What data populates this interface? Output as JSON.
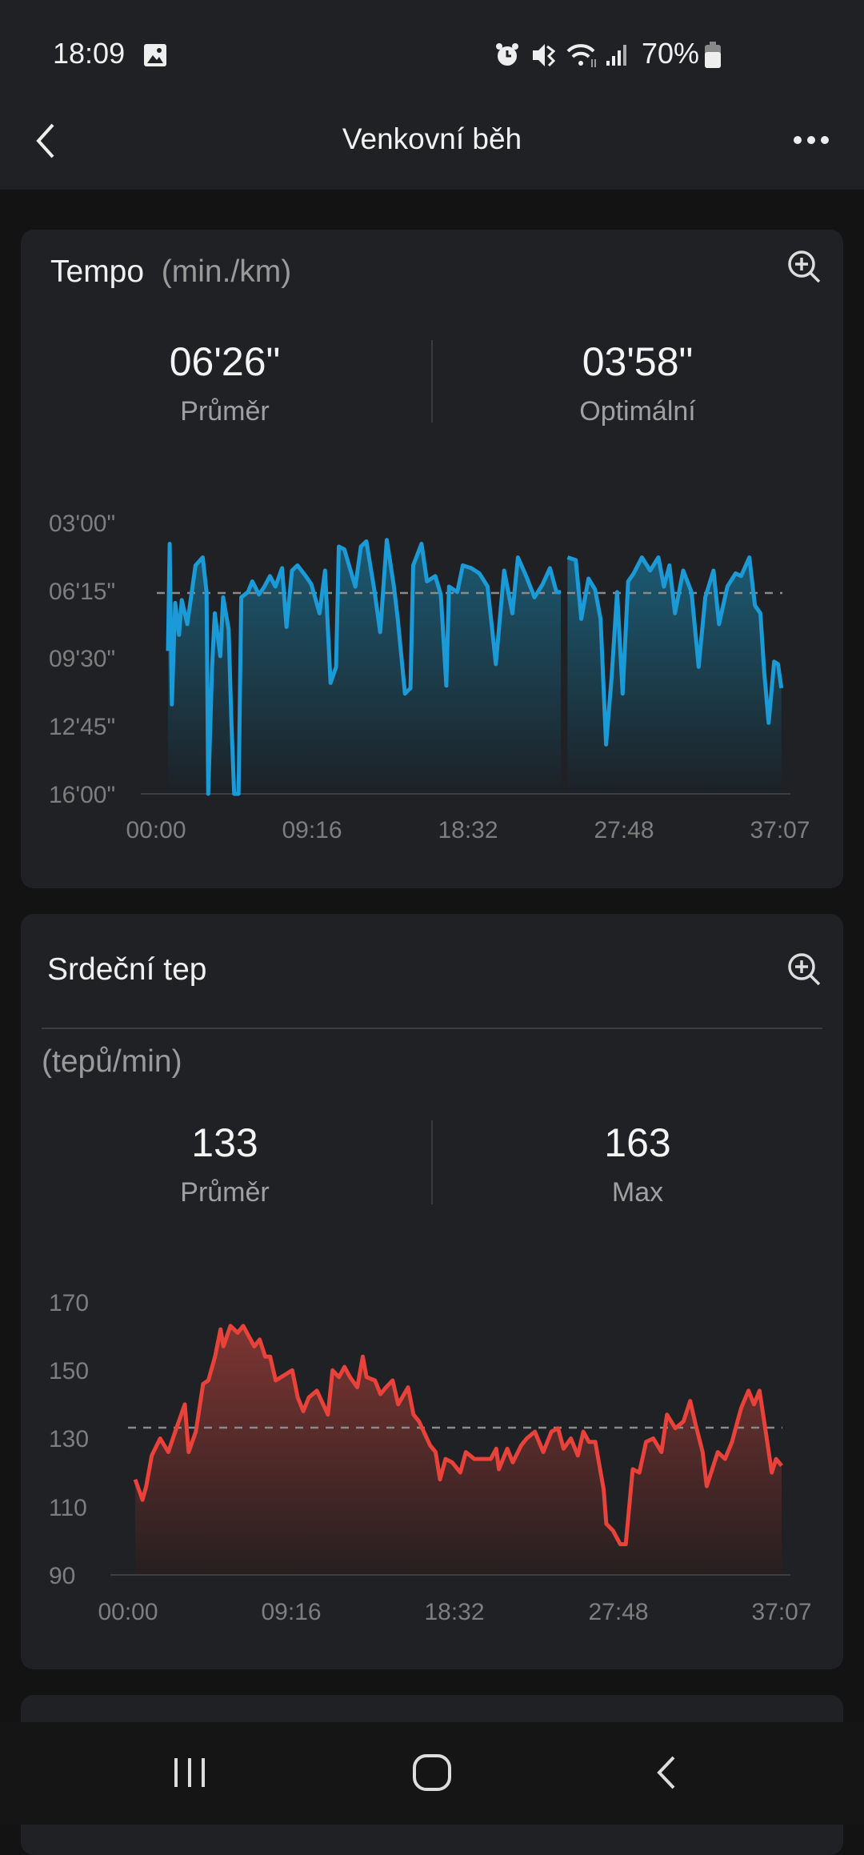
{
  "status_bar": {
    "time": "18:09",
    "battery": "70%",
    "icons": [
      "image-icon",
      "alarm-icon",
      "mute-icon",
      "wifi-icon",
      "signal-icon",
      "battery-icon"
    ]
  },
  "header": {
    "title": "Venkovní běh",
    "back_icon": "chevron-left-icon",
    "menu_icon": "more-horizontal-icon"
  },
  "tempo": {
    "title": "Tempo",
    "unit": "(min./km)",
    "stats": [
      {
        "value": "06'26\"",
        "label": "Průměr"
      },
      {
        "value": "03'58\"",
        "label": "Optimální"
      }
    ],
    "y_ticks": [
      "03'00\"",
      "06'15\"",
      "09'30\"",
      "12'45\"",
      "16'00\""
    ],
    "x_ticks": [
      "00:00",
      "09:16",
      "18:32",
      "27:48",
      "37:07"
    ]
  },
  "heart": {
    "title": "Srdeční tep",
    "unit": "(tepů/min)",
    "stats": [
      {
        "value": "133",
        "label": "Průměr"
      },
      {
        "value": "163",
        "label": "Max"
      }
    ],
    "y_ticks": [
      "170",
      "150",
      "130",
      "110",
      "90"
    ],
    "x_ticks": [
      "00:00",
      "09:16",
      "18:32",
      "27:48",
      "37:07"
    ]
  },
  "chart_data": [
    {
      "type": "area",
      "xlabel": "",
      "ylabel": "",
      "color": "#1a9ad6",
      "x_range": [
        "00:00",
        "37:07"
      ],
      "y_range": [
        "03'00",
        "16'00"
      ],
      "y_inverted": true,
      "reference_line": "06'26",
      "grid": false,
      "points": [
        [
          "00:00",
          "9'09"
        ],
        [
          "00:06",
          "4'01"
        ],
        [
          "00:14",
          "11'43"
        ],
        [
          "00:26",
          "6'51"
        ],
        [
          "00:40",
          "8'23"
        ],
        [
          "00:50",
          "6'43"
        ],
        [
          "01:10",
          "7'52"
        ],
        [
          "01:40",
          "5'03"
        ],
        [
          "02:06",
          "4'40"
        ],
        [
          "02:20",
          "6'20"
        ],
        [
          "02:26",
          "16'00"
        ],
        [
          "02:40",
          "9'55"
        ],
        [
          "02:50",
          "7'21"
        ],
        [
          "03:10",
          "9'24"
        ],
        [
          "03:20",
          "6'35"
        ],
        [
          "03:40",
          "8'07"
        ],
        [
          "03:50",
          "12'29"
        ],
        [
          "04:00",
          "16'00"
        ],
        [
          "04:16",
          "16'00"
        ],
        [
          "04:26",
          "6'35"
        ],
        [
          "04:50",
          "6'20"
        ],
        [
          "05:06",
          "5'49"
        ],
        [
          "05:30",
          "6'27"
        ],
        [
          "05:50",
          "6'04"
        ],
        [
          "06:10",
          "5'34"
        ],
        [
          "06:30",
          "6'04"
        ],
        [
          "06:54",
          "5'11"
        ],
        [
          "07:10",
          "8'00"
        ],
        [
          "07:30",
          "5'18"
        ],
        [
          "07:50",
          "5'03"
        ],
        [
          "08:20",
          "5'34"
        ],
        [
          "08:40",
          "5'57"
        ],
        [
          "09:10",
          "7'21"
        ],
        [
          "09:30",
          "5'18"
        ],
        [
          "09:50",
          "10'41"
        ],
        [
          "10:10",
          "9'55"
        ],
        [
          "10:20",
          "4'09"
        ],
        [
          "10:40",
          "4'17"
        ],
        [
          "11:00",
          "5'11"
        ],
        [
          "11:20",
          "6'04"
        ],
        [
          "11:40",
          "4'09"
        ],
        [
          "12:00",
          "3'54"
        ],
        [
          "12:30",
          "6'20"
        ],
        [
          "12:50",
          "8'15"
        ],
        [
          "13:14",
          "3'50"
        ],
        [
          "13:40",
          "6'04"
        ],
        [
          "13:54",
          "7'37"
        ],
        [
          "14:20",
          "11'12"
        ],
        [
          "14:40",
          "10'56"
        ],
        [
          "14:50",
          "5'03"
        ],
        [
          "15:20",
          "4'01"
        ],
        [
          "15:40",
          "5'49"
        ],
        [
          "16:10",
          "5'34"
        ],
        [
          "16:30",
          "6'27"
        ],
        [
          "16:50",
          "10'49"
        ],
        [
          "17:00",
          "6'04"
        ],
        [
          "17:30",
          "6'20"
        ],
        [
          "17:50",
          "5'03"
        ],
        [
          "18:20",
          "5'11"
        ],
        [
          "18:50",
          "5'26"
        ],
        [
          "19:20",
          "6'04"
        ],
        [
          "19:50",
          "9'47"
        ],
        [
          "20:20",
          "5'18"
        ],
        [
          "20:50",
          "7'21"
        ],
        [
          "21:10",
          "4'40"
        ],
        [
          "21:40",
          "5'34"
        ],
        [
          "22:10",
          "6'35"
        ],
        [
          "22:40",
          "5'57"
        ],
        [
          "23:06",
          "5'11"
        ],
        [
          "23:30",
          "6'20"
        ],
        [
          "23:46",
          "6'20"
        ],
        null,
        [
          "24:10",
          "4'40"
        ],
        [
          "24:40",
          "4'48"
        ],
        [
          "25:00",
          "7'37"
        ],
        [
          "25:26",
          "5'41"
        ],
        [
          "25:50",
          "6'12"
        ],
        [
          "26:10",
          "7'37"
        ],
        [
          "26:30",
          "13'38"
        ],
        [
          "26:50",
          "10'26"
        ],
        [
          "27:10",
          "6'20"
        ],
        [
          "27:30",
          "11'12"
        ],
        [
          "27:50",
          "5'49"
        ],
        [
          "28:10",
          "5'26"
        ],
        [
          "28:40",
          "4'40"
        ],
        [
          "29:10",
          "5'18"
        ],
        [
          "29:40",
          "4'40"
        ],
        [
          "30:00",
          "6'04"
        ],
        [
          "30:20",
          "5'03"
        ],
        [
          "30:40",
          "7'21"
        ],
        [
          "31:10",
          "5'18"
        ],
        [
          "31:40",
          "6'20"
        ],
        [
          "32:06",
          "9'55"
        ],
        [
          "32:30",
          "6'35"
        ],
        [
          "33:00",
          "5'18"
        ],
        [
          "33:20",
          "7'52"
        ],
        [
          "33:50",
          "6'04"
        ],
        [
          "34:20",
          "5'26"
        ],
        [
          "34:40",
          "5'34"
        ],
        [
          "35:10",
          "4'40"
        ],
        [
          "35:30",
          "6'58"
        ],
        [
          "35:50",
          "7'21"
        ],
        [
          "36:04",
          "10'10"
        ],
        [
          "36:20",
          "12'36"
        ],
        [
          "36:40",
          "9'40"
        ],
        [
          "36:54",
          "9'47"
        ],
        [
          "37:06",
          "10'56"
        ]
      ]
    },
    {
      "type": "area",
      "xlabel": "",
      "ylabel": "",
      "color": "#e8423a",
      "x_range": [
        "00:00",
        "37:07"
      ],
      "y_range": [
        90,
        170
      ],
      "reference_line": 133,
      "grid": false,
      "points": [
        [
          "00:00",
          118
        ],
        [
          "00:25",
          112
        ],
        [
          "00:38",
          116
        ],
        [
          "00:57",
          125
        ],
        [
          "01:26",
          130
        ],
        [
          "01:54",
          126
        ],
        [
          "02:22",
          133
        ],
        [
          "02:51",
          140
        ],
        [
          "03:04",
          126
        ],
        [
          "03:29",
          132
        ],
        [
          "03:54",
          146
        ],
        [
          "04:12",
          147
        ],
        [
          "04:35",
          154
        ],
        [
          "04:54",
          162
        ],
        [
          "05:04",
          157
        ],
        [
          "05:28",
          163
        ],
        [
          "05:53",
          161
        ],
        [
          "06:12",
          163
        ],
        [
          "06:31",
          160
        ],
        [
          "06:50",
          157
        ],
        [
          "07:09",
          159
        ],
        [
          "07:28",
          154
        ],
        [
          "07:45",
          154
        ],
        [
          "08:04",
          147
        ],
        [
          "08:23",
          148
        ],
        [
          "09:01",
          150
        ],
        [
          "09:20",
          142
        ],
        [
          "09:39",
          138
        ],
        [
          "09:58",
          142
        ],
        [
          "10:26",
          144
        ],
        [
          "11:04",
          137
        ],
        [
          "11:20",
          150
        ],
        [
          "11:42",
          148
        ],
        [
          "12:01",
          151
        ],
        [
          "12:20",
          148
        ],
        [
          "12:45",
          145
        ],
        [
          "13:04",
          154
        ],
        [
          "13:17",
          148
        ],
        [
          "13:46",
          147
        ],
        [
          "14:05",
          143
        ],
        [
          "14:24",
          145
        ],
        [
          "14:47",
          147
        ],
        [
          "15:06",
          140
        ],
        [
          "15:40",
          145
        ],
        [
          "15:59",
          137
        ],
        [
          "16:18",
          135
        ],
        [
          "16:56",
          128
        ],
        [
          "17:15",
          126
        ],
        [
          "17:30",
          118
        ],
        [
          "17:49",
          124
        ],
        [
          "18:12",
          123
        ],
        [
          "18:40",
          120
        ],
        [
          "18:59",
          126
        ],
        [
          "19:28",
          124
        ],
        [
          "20:25",
          124
        ],
        [
          "20:44",
          127
        ],
        [
          "20:53",
          121
        ],
        [
          "21:22",
          127
        ],
        [
          "21:41",
          123
        ],
        [
          "22:10",
          128
        ],
        [
          "22:29",
          130
        ],
        [
          "22:57",
          132
        ],
        [
          "23:26",
          126
        ],
        [
          "23:54",
          132
        ],
        [
          "24:17",
          133
        ],
        [
          "24:36",
          127
        ],
        [
          "25:01",
          130
        ],
        [
          "25:25",
          125
        ],
        [
          "25:44",
          132
        ],
        [
          "26:03",
          129
        ],
        [
          "26:25",
          129
        ],
        [
          "26:54",
          115
        ],
        [
          "27:03",
          105
        ],
        [
          "27:26",
          103
        ],
        [
          "27:51",
          99
        ],
        [
          "28:10",
          99
        ],
        [
          "28:34",
          121
        ],
        [
          "28:57",
          120
        ],
        [
          "29:20",
          129
        ],
        [
          "29:45",
          130
        ],
        [
          "30:13",
          126
        ],
        [
          "30:32",
          137
        ],
        [
          "31:01",
          133
        ],
        [
          "31:29",
          135
        ],
        [
          "31:52",
          141
        ],
        [
          "32:11",
          134
        ],
        [
          "32:35",
          126
        ],
        [
          "32:49",
          116
        ],
        [
          "33:08",
          121
        ],
        [
          "33:27",
          126
        ],
        [
          "33:52",
          124
        ],
        [
          "34:16",
          129
        ],
        [
          "34:35",
          135
        ],
        [
          "34:48",
          139
        ],
        [
          "35:13",
          144
        ],
        [
          "35:32",
          140
        ],
        [
          "35:51",
          144
        ],
        [
          "36:14",
          131
        ],
        [
          "36:33",
          120
        ],
        [
          "36:48",
          124
        ],
        [
          "37:07",
          122
        ]
      ]
    }
  ],
  "nav_bar": {
    "icons": [
      "recent-apps-icon",
      "home-icon",
      "back-icon"
    ]
  }
}
